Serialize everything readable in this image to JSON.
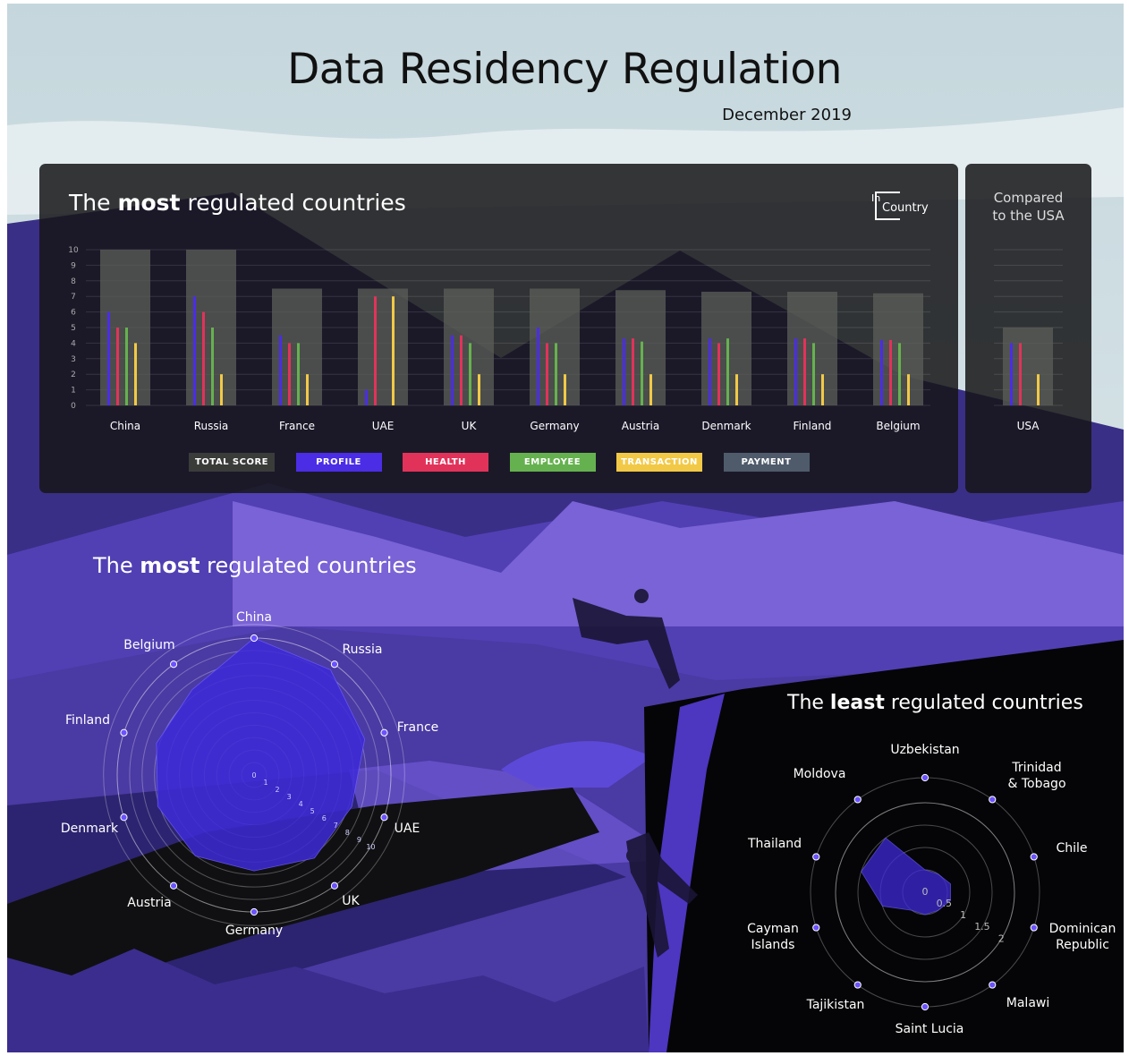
{
  "header": {
    "title": "Data Residency Regulation",
    "date": "December 2019"
  },
  "brand": {
    "logo_small": "In",
    "logo_text": "Country"
  },
  "colors": {
    "total_score": "#5b5f58",
    "profile": "#4b2de6",
    "health": "#e1335a",
    "employee": "#66b14f",
    "transaction": "#f2c947",
    "payment": "#4f5b6b",
    "radar_fill": "#3e2ad8",
    "node": "#6a52ff"
  },
  "legend": {
    "items": [
      {
        "key": "total_score",
        "label": "TOTAL SCORE"
      },
      {
        "key": "profile",
        "label": "PROFILE"
      },
      {
        "key": "health",
        "label": "HEALTH"
      },
      {
        "key": "employee",
        "label": "EMPLOYEE"
      },
      {
        "key": "transaction",
        "label": "TRANSACTION"
      },
      {
        "key": "payment",
        "label": "PAYMENT"
      }
    ]
  },
  "compare": {
    "title_line1": "Compared",
    "title_line2": "to the USA"
  },
  "chart_data": [
    {
      "type": "bar",
      "title": "The most regulated countries",
      "categories": [
        "China",
        "Russia",
        "France",
        "UAE",
        "UK",
        "Germany",
        "Austria",
        "Denmark",
        "Finland",
        "Belgium"
      ],
      "ylim": [
        0,
        10
      ],
      "yticks": [
        0,
        1,
        2,
        3,
        4,
        5,
        6,
        7,
        8,
        9,
        10
      ],
      "grid": true,
      "total_score": [
        10,
        10,
        7.5,
        7.5,
        7.5,
        7.5,
        7.4,
        7.3,
        7.3,
        7.2
      ],
      "series": [
        {
          "name": "PROFILE",
          "key": "profile",
          "values": [
            6,
            7,
            4.5,
            1,
            4.5,
            5,
            4.3,
            4.3,
            4.3,
            4.2
          ]
        },
        {
          "name": "HEALTH",
          "key": "health",
          "values": [
            5,
            6,
            4,
            7,
            4.5,
            4,
            4.3,
            4,
            4.3,
            4.2
          ]
        },
        {
          "name": "EMPLOYEE",
          "key": "employee",
          "values": [
            5,
            5,
            4,
            0,
            4,
            4,
            4.1,
            4.3,
            4,
            4
          ]
        },
        {
          "name": "TRANSACTION",
          "key": "transaction",
          "values": [
            4,
            2,
            2,
            7,
            2,
            2,
            2,
            2,
            2,
            2
          ]
        }
      ]
    },
    {
      "type": "bar",
      "title": "Compared to the USA",
      "categories": [
        "USA"
      ],
      "ylim": [
        0,
        10
      ],
      "total_score": [
        5
      ],
      "series": [
        {
          "name": "PROFILE",
          "key": "profile",
          "values": [
            4
          ]
        },
        {
          "name": "HEALTH",
          "key": "health",
          "values": [
            4
          ]
        },
        {
          "name": "EMPLOYEE",
          "key": "employee",
          "values": [
            0
          ]
        },
        {
          "name": "TRANSACTION",
          "key": "transaction",
          "values": [
            2
          ]
        }
      ]
    },
    {
      "type": "radar",
      "title": "The most regulated countries",
      "categories": [
        "China",
        "Russia",
        "France",
        "UAE",
        "UK",
        "Germany",
        "Austria",
        "Denmark",
        "Finland",
        "Belgium"
      ],
      "values": [
        10,
        9.5,
        8.5,
        7.5,
        7.5,
        7,
        7.3,
        7.4,
        7.5,
        7.7
      ],
      "rlim": [
        0,
        10
      ],
      "rticks": [
        "0",
        "1",
        "2",
        "3",
        "4",
        "5",
        "6",
        "7",
        "8",
        "9",
        "10"
      ]
    },
    {
      "type": "radar",
      "title": "The least regulated countries",
      "categories": [
        "Uzbekistan",
        "Trinidad & Tobago",
        "Chile",
        "Dominican Republic",
        "Malawi",
        "Saint Lucia",
        "Tajikistan",
        "Cayman Islands",
        "Thailand",
        "Moldova"
      ],
      "labels_display": [
        "Uzbekistan",
        "Trinidad\n& Tobago",
        "Chile",
        "Dominican\nRepublic",
        "Malawi",
        "Saint Lucia",
        "Tajikistan",
        "Cayman\nIslands",
        "Thailand",
        "Moldova"
      ],
      "values": [
        0.5,
        0.5,
        0.6,
        0.6,
        0.5,
        0.5,
        0.5,
        1.0,
        1.5,
        1.5
      ],
      "rlim": [
        0,
        2
      ],
      "rticks": [
        "0",
        "0.5",
        "1",
        "1.5",
        "2"
      ]
    }
  ]
}
